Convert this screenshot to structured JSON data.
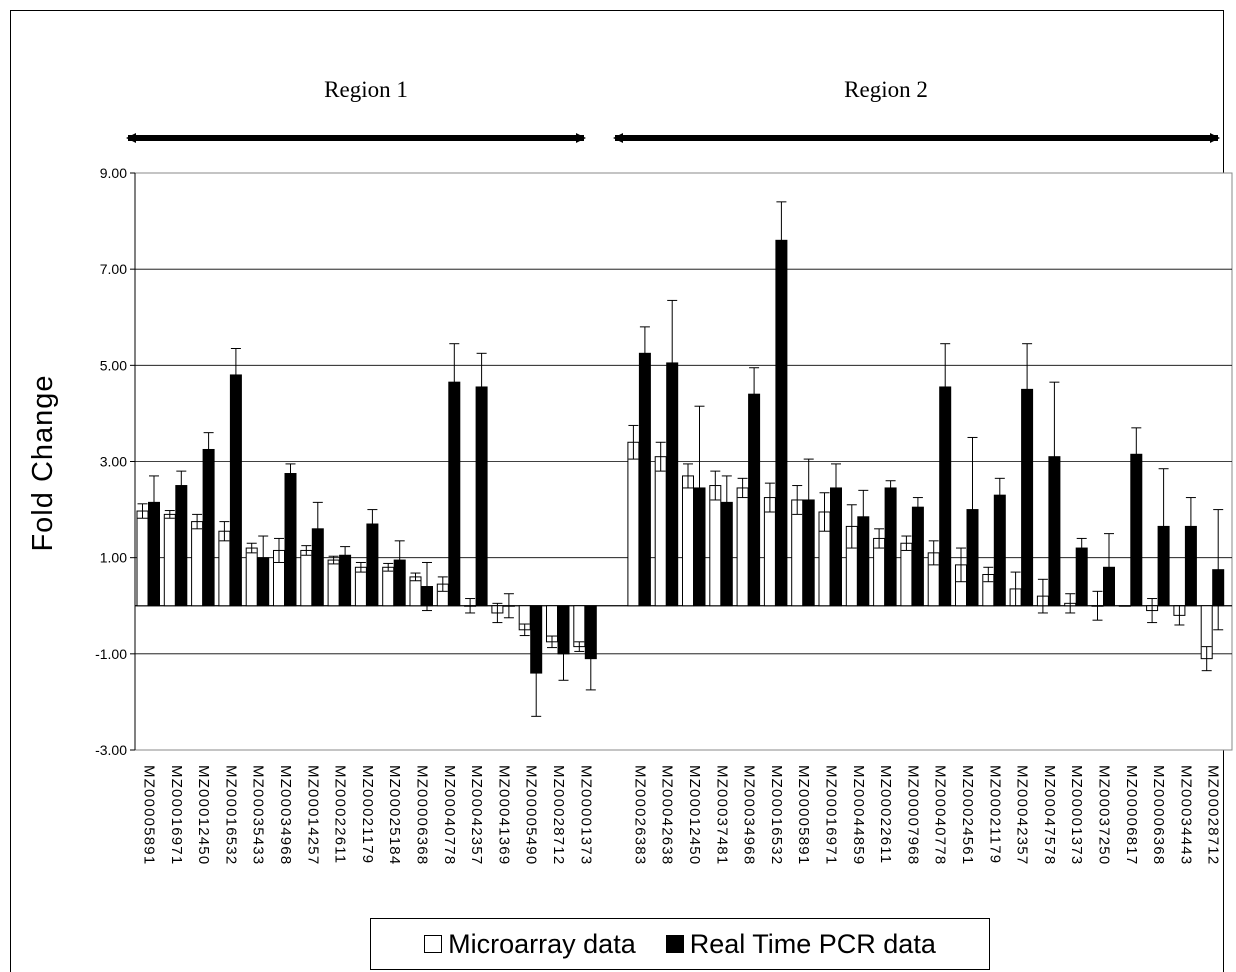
{
  "chart_data": {
    "type": "bar",
    "title": "",
    "xlabel": "",
    "ylabel": "Fold Change",
    "ylim": [
      -3,
      9
    ],
    "yticks": [
      9,
      7,
      5,
      3,
      1,
      -1,
      -3
    ],
    "ytick_labels": [
      "9.00",
      "7.00",
      "5.00",
      "3.00",
      "1.00",
      "-1.00",
      "-3.00"
    ],
    "grid": true,
    "legend_position": "bottom",
    "region_labels": [
      "Region 1",
      "Region 2"
    ],
    "series": [
      {
        "name": "Microarray data",
        "color": "#ffffff"
      },
      {
        "name": "Real Time PCR data",
        "color": "#000000"
      }
    ],
    "groups": [
      {
        "region": "Region 1",
        "categories": [
          "MZ00005891",
          "MZ00016971",
          "MZ00012450",
          "MZ00016532",
          "MZ00035433",
          "MZ00034968",
          "MZ00014257",
          "MZ00022611",
          "MZ00021179",
          "MZ00025184",
          "MZ00006368",
          "MZ00040778",
          "MZ00042357",
          "MZ00041369",
          "MZ00005490",
          "MZ00028712",
          "MZ00001373"
        ],
        "microarray": [
          1.97,
          1.9,
          1.75,
          1.55,
          1.2,
          1.15,
          1.15,
          0.95,
          0.8,
          0.8,
          0.6,
          0.45,
          0.0,
          -0.15,
          -0.5,
          -0.75,
          -0.85
        ],
        "microarray_err": [
          0.15,
          0.08,
          0.15,
          0.2,
          0.1,
          0.25,
          0.1,
          0.08,
          0.1,
          0.08,
          0.08,
          0.15,
          0.15,
          0.2,
          0.12,
          0.12,
          0.1
        ],
        "pcr": [
          2.15,
          2.5,
          3.25,
          4.8,
          1.0,
          2.75,
          1.6,
          1.05,
          1.7,
          0.95,
          0.4,
          4.65,
          4.55,
          0.0,
          -1.4,
          -1.0,
          -1.1
        ],
        "pcr_err": [
          0.55,
          0.3,
          0.35,
          0.55,
          0.45,
          0.2,
          0.55,
          0.18,
          0.3,
          0.4,
          0.5,
          0.8,
          0.7,
          0.25,
          0.9,
          0.55,
          0.65
        ]
      },
      {
        "region": "Region 2",
        "categories": [
          "MZ00026383",
          "MZ00042638",
          "MZ00012450",
          "MZ00037481",
          "MZ00034968",
          "MZ00016532",
          "MZ00005891",
          "MZ00016971",
          "MZ00044859",
          "MZ00022611",
          "MZ00007968",
          "MZ00040778",
          "MZ00024561",
          "MZ00021179",
          "MZ00042357",
          "MZ00047578",
          "MZ00001373",
          "MZ00037250",
          "MZ00006817",
          "MZ00006368",
          "MZ00034443",
          "MZ00028712"
        ],
        "microarray": [
          3.4,
          3.1,
          2.7,
          2.5,
          2.45,
          2.25,
          2.2,
          1.95,
          1.65,
          1.4,
          1.3,
          1.1,
          0.85,
          0.65,
          0.35,
          0.2,
          0.05,
          0.0,
          0.0,
          -0.1,
          -0.2,
          -1.1
        ],
        "microarray_err": [
          0.35,
          0.3,
          0.25,
          0.3,
          0.2,
          0.3,
          0.3,
          0.4,
          0.45,
          0.2,
          0.15,
          0.25,
          0.35,
          0.15,
          0.35,
          0.35,
          0.2,
          0.3,
          0.0,
          0.25,
          0.2,
          0.25
        ],
        "pcr": [
          5.25,
          5.05,
          2.45,
          2.15,
          4.4,
          7.6,
          2.2,
          2.45,
          1.85,
          2.45,
          2.05,
          4.55,
          2.0,
          2.3,
          4.5,
          3.1,
          1.2,
          0.8,
          3.15,
          1.65,
          1.65,
          0.75
        ],
        "pcr_err": [
          0.55,
          1.3,
          1.7,
          0.55,
          0.55,
          0.8,
          0.85,
          0.5,
          0.55,
          0.15,
          0.2,
          0.9,
          1.5,
          0.35,
          0.95,
          1.55,
          0.2,
          0.7,
          0.55,
          1.2,
          0.6,
          1.25
        ]
      }
    ]
  }
}
